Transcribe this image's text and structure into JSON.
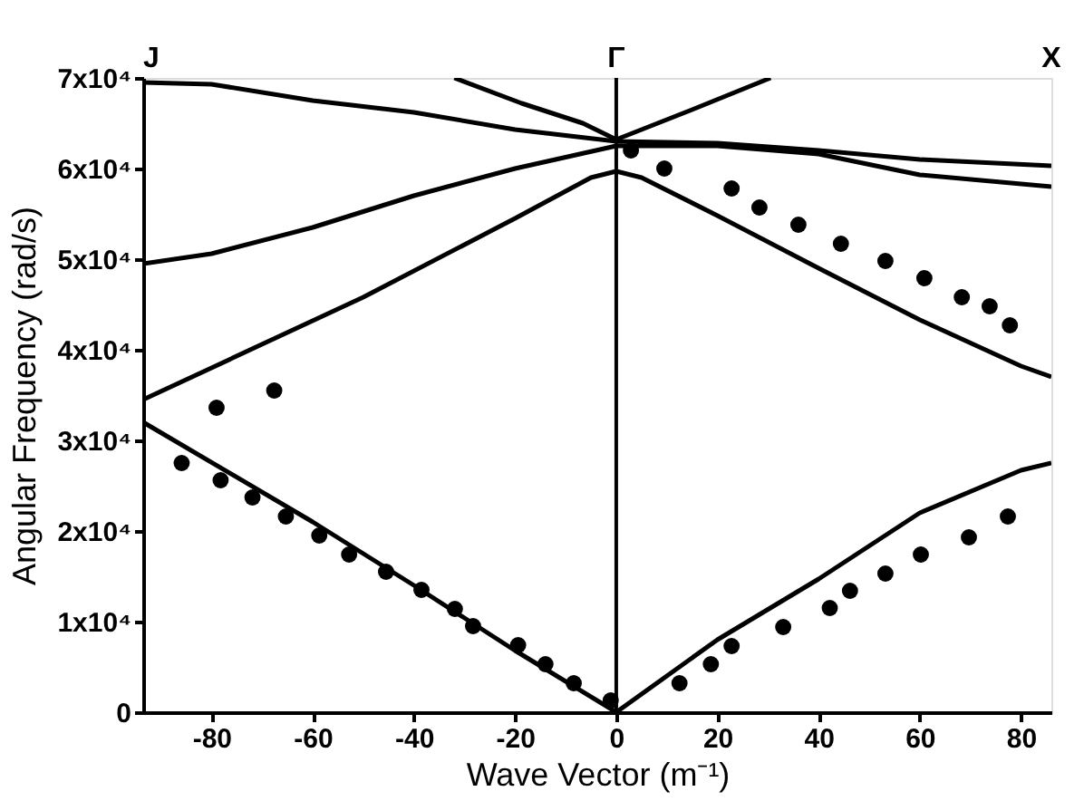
{
  "chart_data": {
    "type": "line",
    "xlabel": "Wave Vector (m⁻¹)",
    "ylabel": "Angular Frequency (rad/s)",
    "xlim": [
      -93.5,
      86
    ],
    "ylim": [
      0,
      70000
    ],
    "xticks": [
      -80,
      -60,
      -40,
      -20,
      0,
      20,
      40,
      60,
      80
    ],
    "yticks": [
      {
        "value": 0,
        "label": "0"
      },
      {
        "value": 10000,
        "label": "1x10⁴"
      },
      {
        "value": 20000,
        "label": "2x10⁴"
      },
      {
        "value": 30000,
        "label": "3x10⁴"
      },
      {
        "value": 40000,
        "label": "4x10⁴"
      },
      {
        "value": 50000,
        "label": "5x10⁴"
      },
      {
        "value": 60000,
        "label": "6x10⁴"
      },
      {
        "value": 70000,
        "label": "7x10⁴"
      }
    ],
    "annotations": [
      "J",
      "X"
    ],
    "grid": false,
    "line_style": "solid",
    "ref_lines": [
      {
        "axis": "x",
        "value": 0,
        "color": "#000000",
        "label": "Γ"
      }
    ],
    "series": [
      {
        "color": "#000000",
        "x": [
          -93.5,
          -60,
          -40,
          -20,
          0,
          20,
          40,
          60,
          80,
          86
        ],
        "values": [
          32000,
          21000,
          14000,
          6800,
          0,
          8000,
          14700,
          22000,
          26700,
          27500
        ]
      },
      {
        "color": "#000000",
        "x": [
          -93.5,
          -50,
          -20,
          -5,
          0,
          5,
          20,
          40,
          60,
          80,
          86
        ],
        "values": [
          34500,
          45800,
          54500,
          59000,
          59700,
          59000,
          54800,
          49000,
          43300,
          38200,
          37000
        ]
      },
      {
        "color": "#000000",
        "x": [
          -93.5,
          -80,
          -60,
          -40,
          -20,
          0,
          20,
          40,
          60,
          86
        ],
        "values": [
          49500,
          50600,
          53500,
          57000,
          60000,
          62500,
          62500,
          61600,
          59300,
          58000
        ]
      },
      {
        "color": "#000000",
        "x": [
          -93.5,
          -80,
          -60,
          -40,
          -20,
          0,
          20,
          40,
          60,
          86
        ],
        "values": [
          69500,
          69300,
          67500,
          66200,
          64300,
          63000,
          62800,
          62000,
          61000,
          60300
        ]
      },
      {
        "color": "#000000",
        "x": [
          -32,
          -18.7,
          -6.6,
          0,
          15,
          30.5
        ],
        "values": [
          70000,
          67200,
          65000,
          63200,
          66500,
          70000
        ]
      },
      {
        "type": "scatter",
        "marker": "circle",
        "color": "#000000",
        "x": [
          -85.9,
          -78.2,
          -71.9,
          -65.3,
          -58.7,
          -52.8,
          -45.5,
          -38.5,
          -31.9,
          -28.3,
          -19.4,
          -14,
          -8.4,
          -1.1
        ],
        "values": [
          27500,
          25600,
          23700,
          21600,
          19500,
          17400,
          15500,
          13500,
          11400,
          9500,
          7400,
          5300,
          3200,
          1300
        ]
      },
      {
        "type": "scatter",
        "marker": "circle",
        "color": "#000000",
        "x": [
          -79,
          -67.6
        ],
        "values": [
          33600,
          35500
        ]
      },
      {
        "type": "scatter",
        "marker": "circle",
        "color": "#000000",
        "x": [
          12.5,
          18.7,
          22.8,
          33,
          42.2,
          46.2,
          53.2,
          60.2,
          69.7,
          77.4
        ],
        "values": [
          3200,
          5300,
          7300,
          9400,
          11500,
          13400,
          15300,
          17400,
          19300,
          21600
        ]
      },
      {
        "type": "scatter",
        "marker": "circle",
        "color": "#000000",
        "x": [
          2.9,
          9.5,
          22.8,
          28.3,
          36,
          44.4,
          53.2,
          60.9,
          68.3,
          73.8,
          77.8
        ],
        "values": [
          62000,
          60000,
          57800,
          55700,
          53800,
          51700,
          49800,
          47900,
          45800,
          44800,
          42700
        ]
      }
    ]
  }
}
